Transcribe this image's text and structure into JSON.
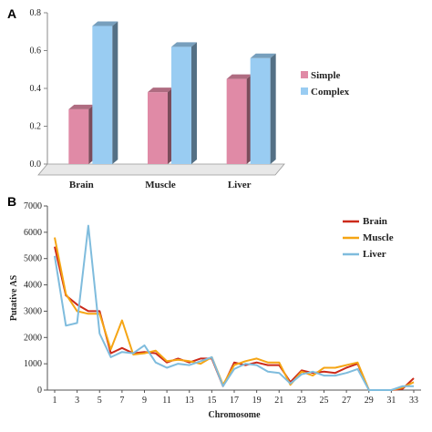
{
  "chart_data": [
    {
      "panel": "A",
      "type": "bar",
      "categories": [
        "Brain",
        "Muscle",
        "Liver"
      ],
      "series": [
        {
          "name": "Simple",
          "values": [
            0.29,
            0.38,
            0.45
          ],
          "color": "#e08aa6"
        },
        {
          "name": "Complex",
          "values": [
            0.73,
            0.62,
            0.56
          ],
          "color": "#99ccf2"
        }
      ],
      "ylim": [
        0,
        0.8
      ],
      "yticks": [
        "0.0",
        "0.2",
        "0.4",
        "0.6",
        "0.8"
      ],
      "legend": "right",
      "grid": false
    },
    {
      "panel": "B",
      "type": "line",
      "x": [
        1,
        2,
        3,
        4,
        5,
        6,
        7,
        8,
        9,
        10,
        11,
        12,
        13,
        14,
        15,
        16,
        17,
        18,
        19,
        20,
        21,
        22,
        23,
        24,
        25,
        26,
        27,
        28,
        29,
        30,
        31,
        32,
        33
      ],
      "series": [
        {
          "name": "Brain",
          "color": "#cc2a1a",
          "values": [
            5450,
            3600,
            3250,
            3000,
            3000,
            1400,
            1600,
            1400,
            1450,
            1400,
            1050,
            1200,
            1050,
            1200,
            1200,
            150,
            1050,
            950,
            1050,
            950,
            950,
            300,
            750,
            650,
            700,
            650,
            850,
            1000,
            0,
            0,
            0,
            50,
            450
          ]
        },
        {
          "name": "Muscle",
          "color": "#f5a514",
          "values": [
            5800,
            3650,
            3000,
            2900,
            2900,
            1550,
            2650,
            1350,
            1400,
            1500,
            1100,
            1150,
            1100,
            1000,
            1250,
            200,
            950,
            1100,
            1200,
            1050,
            1050,
            200,
            700,
            550,
            850,
            850,
            950,
            1050,
            0,
            0,
            0,
            100,
            300
          ]
        },
        {
          "name": "Liver",
          "color": "#7fbcdd",
          "values": [
            5100,
            2450,
            2550,
            6250,
            2150,
            1250,
            1450,
            1400,
            1700,
            1050,
            850,
            1000,
            950,
            1100,
            1250,
            150,
            800,
            1000,
            950,
            700,
            650,
            250,
            600,
            700,
            550,
            550,
            650,
            800,
            0,
            0,
            0,
            150,
            150
          ]
        }
      ],
      "xticks": [
        1,
        3,
        5,
        7,
        9,
        11,
        13,
        15,
        17,
        19,
        21,
        23,
        25,
        27,
        29,
        31,
        33
      ],
      "xlabel": "Chromosome",
      "ylabel": "Putative AS",
      "ylim": [
        0,
        7000
      ],
      "yticks": [
        0,
        1000,
        2000,
        3000,
        4000,
        5000,
        6000,
        7000
      ],
      "legend": "top-right",
      "grid": false
    }
  ]
}
